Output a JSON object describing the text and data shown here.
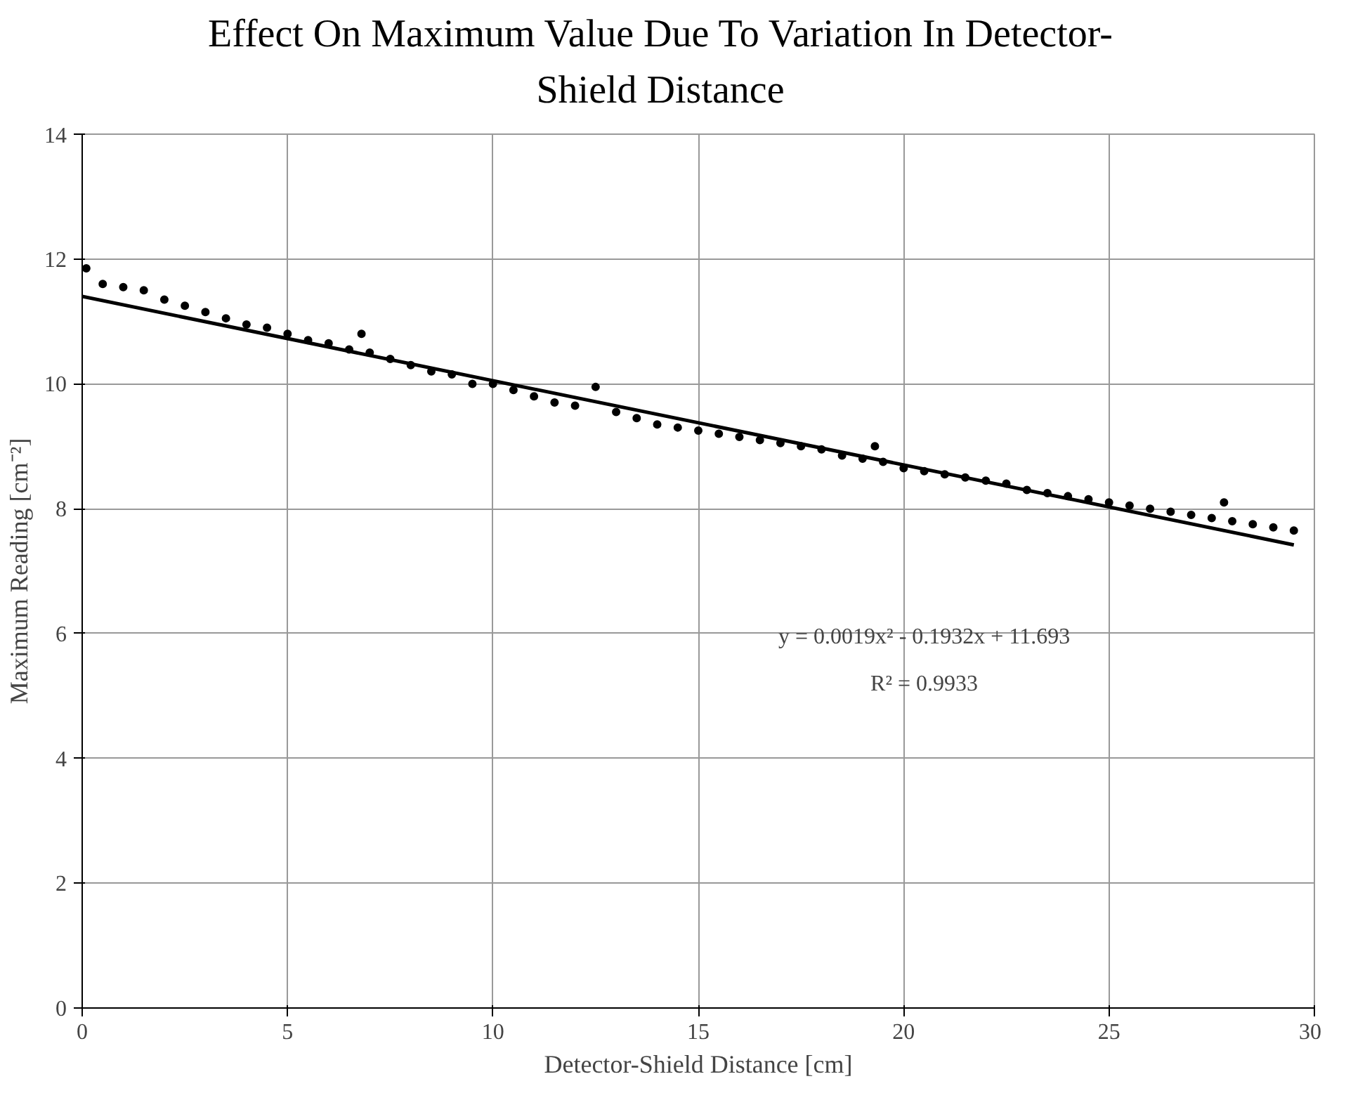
{
  "chart_data": {
    "type": "scatter",
    "title": "Effect On Maximum Value Due To Variation In Detector-Shield Distance",
    "xlabel": "Detector-Shield Distance [cm]",
    "ylabel": "Maximum Reading [cm⁻²]",
    "xlim": [
      0,
      30
    ],
    "ylim": [
      0,
      14
    ],
    "xticks": [
      0,
      5,
      10,
      15,
      20,
      25,
      30
    ],
    "yticks": [
      0,
      2,
      4,
      6,
      8,
      10,
      12,
      14
    ],
    "grid": true,
    "marker": "circle",
    "series": [
      {
        "color": "#000000",
        "x": [
          0.1,
          0.5,
          1.0,
          1.5,
          2.0,
          2.5,
          3.0,
          3.5,
          4.0,
          4.5,
          5.0,
          5.5,
          6.0,
          6.5,
          6.8,
          7.0,
          7.5,
          8.0,
          8.5,
          9.0,
          9.5,
          10.0,
          10.5,
          11.0,
          11.5,
          12.0,
          12.5,
          13.0,
          13.5,
          14.0,
          14.5,
          15.0,
          15.5,
          16.0,
          16.5,
          17.0,
          17.5,
          18.0,
          18.5,
          19.0,
          19.3,
          19.5,
          20.0,
          20.5,
          21.0,
          21.5,
          22.0,
          22.5,
          23.0,
          23.5,
          24.0,
          24.5,
          25.0,
          25.5,
          26.0,
          26.5,
          27.0,
          27.5,
          27.8,
          28.0,
          28.5,
          29.0,
          29.5
        ],
        "values": [
          11.85,
          11.6,
          11.55,
          11.5,
          11.35,
          11.25,
          11.15,
          11.05,
          10.95,
          10.9,
          10.8,
          10.7,
          10.65,
          10.55,
          10.8,
          10.5,
          10.4,
          10.3,
          10.2,
          10.15,
          10.0,
          10.0,
          9.9,
          9.8,
          9.7,
          9.65,
          9.95,
          9.55,
          9.45,
          9.35,
          9.3,
          9.25,
          9.2,
          9.15,
          9.1,
          9.05,
          9.0,
          8.95,
          8.85,
          8.8,
          9.0,
          8.75,
          8.65,
          8.6,
          8.55,
          8.5,
          8.45,
          8.4,
          8.3,
          8.25,
          8.2,
          8.15,
          8.1,
          8.05,
          8.0,
          7.95,
          7.9,
          7.85,
          8.1,
          7.8,
          7.75,
          7.7,
          7.65
        ]
      },
      {
        "type": "line",
        "marker": "none",
        "color": "#000000",
        "x": [
          0,
          29.5
        ],
        "values": [
          11.4,
          7.42
        ]
      }
    ],
    "annotations": [
      "y = 0.0019x² - 0.1932x + 11.693",
      "R² = 0.9933"
    ]
  }
}
